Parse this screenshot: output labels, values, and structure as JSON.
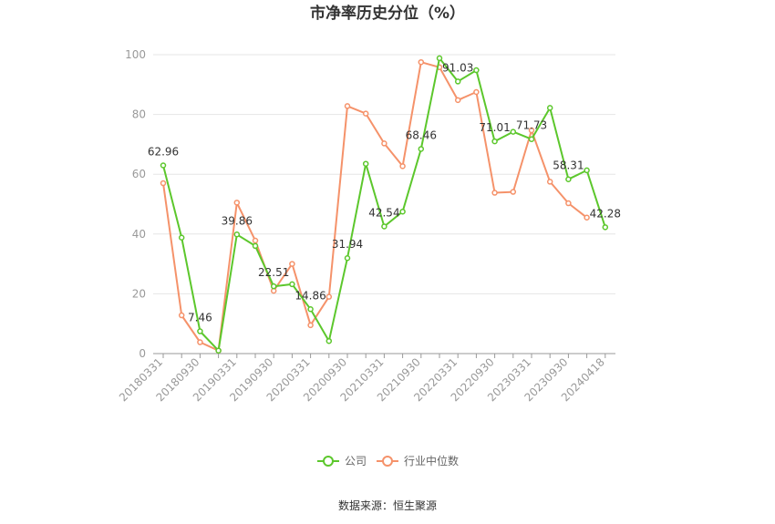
{
  "chart_data": {
    "type": "line",
    "title": "市净率历史分位（%）",
    "ylim": [
      0,
      100
    ],
    "yticks": [
      0,
      20,
      40,
      60,
      80,
      100
    ],
    "x": [
      "20180331",
      "20180630",
      "20180930",
      "20181231",
      "20190331",
      "20190630",
      "20190930",
      "20191231",
      "20200331",
      "20200630",
      "20200930",
      "20201231",
      "20210331",
      "20210630",
      "20210930",
      "20211231",
      "20220331",
      "20220630",
      "20220930",
      "20221231",
      "20230331",
      "20230630",
      "20230930",
      "20231231",
      "20240418"
    ],
    "x_tick_labels": [
      "20180331",
      "20180930",
      "20190331",
      "20190930",
      "20200331",
      "20200930",
      "20210331",
      "20210930",
      "20220331",
      "20220930",
      "20230331",
      "20230930",
      "20240418"
    ],
    "series": [
      {
        "name": "公司",
        "color": "#5cc72c",
        "values": [
          62.96,
          38.8,
          7.46,
          1.0,
          39.86,
          36.0,
          22.51,
          23.2,
          14.86,
          4.2,
          31.94,
          63.5,
          42.54,
          47.5,
          68.46,
          98.8,
          91.03,
          94.8,
          71.01,
          74.2,
          71.73,
          82.2,
          58.31,
          61.3,
          42.28
        ],
        "labeled_indices": [
          0,
          2,
          4,
          6,
          8,
          10,
          12,
          14,
          16,
          18,
          20,
          22,
          24
        ]
      },
      {
        "name": "行业中位数",
        "color": "#f5926a",
        "values": [
          57.0,
          12.8,
          3.8,
          1.0,
          50.5,
          37.8,
          21.0,
          30.0,
          9.5,
          19.0,
          82.8,
          80.3,
          70.3,
          62.7,
          97.5,
          95.8,
          84.8,
          87.5,
          53.8,
          54.1,
          74.7,
          57.5,
          50.3,
          45.5,
          null
        ]
      }
    ],
    "legend_position": "bottom-center",
    "grid": "horizontal"
  },
  "source_text": "数据来源：恒生聚源"
}
